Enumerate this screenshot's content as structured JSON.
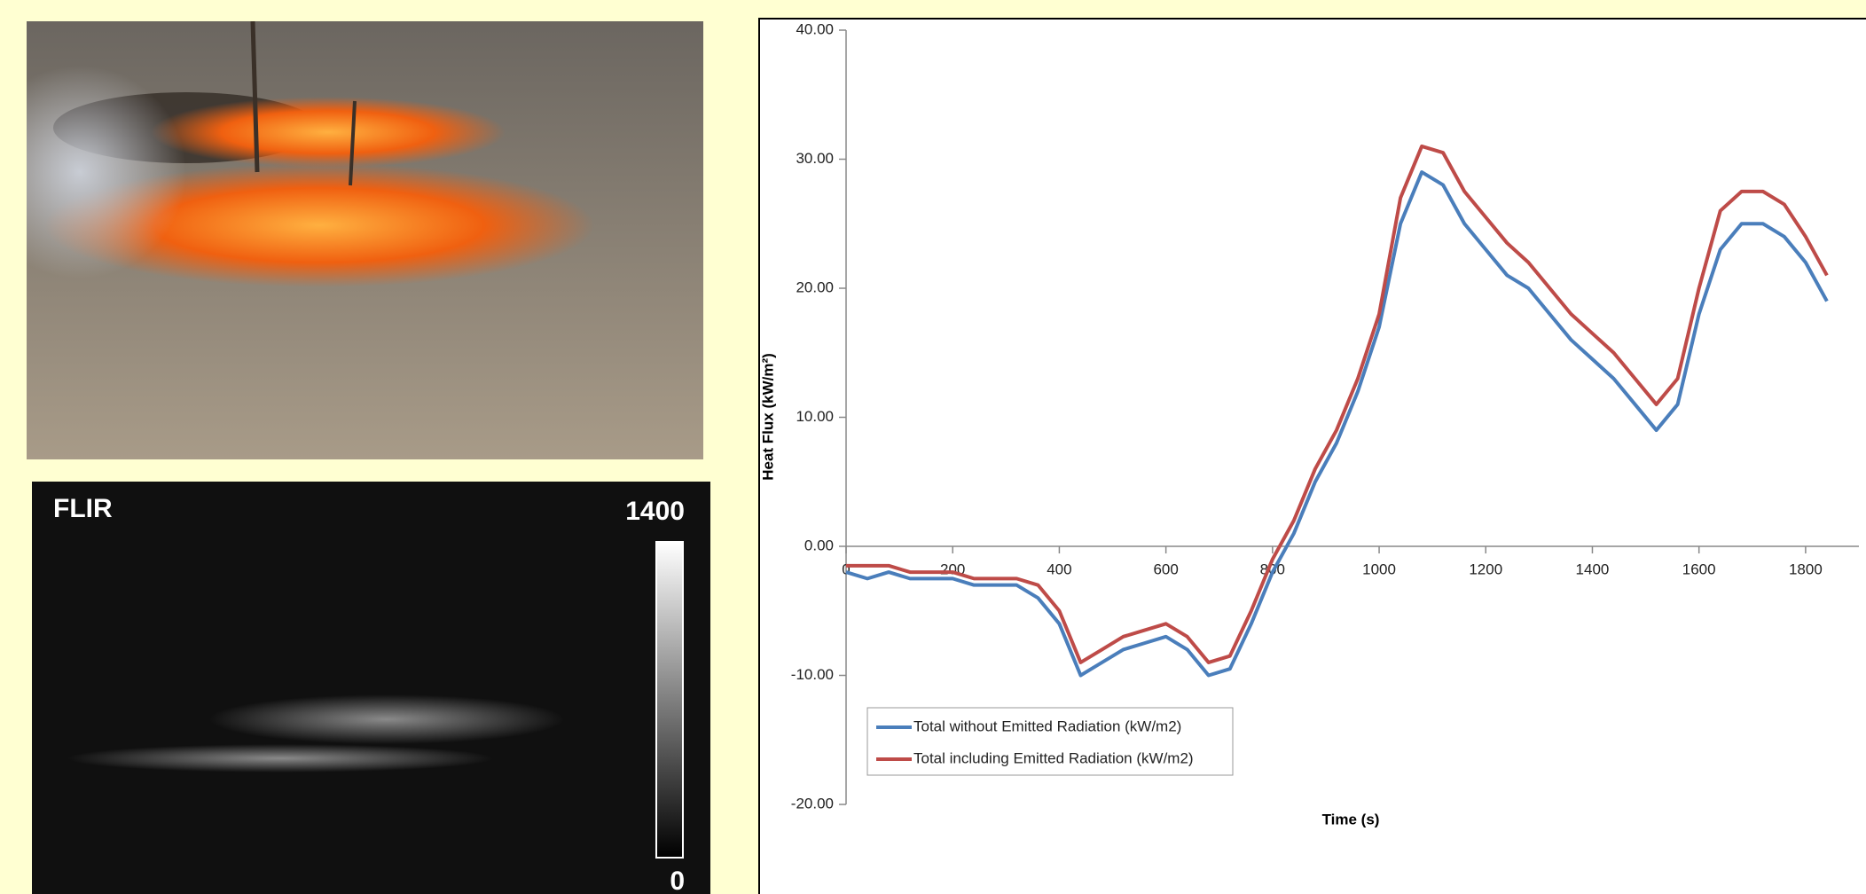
{
  "thermal": {
    "brand": "FLIR",
    "scale_max": "1400",
    "scale_min": "0"
  },
  "chart_data": {
    "type": "line",
    "x_label": "Time (s)",
    "y_label": "Heat Flux (kW/m²)",
    "x": [
      0,
      40,
      80,
      120,
      160,
      200,
      240,
      280,
      320,
      360,
      400,
      440,
      480,
      520,
      560,
      600,
      640,
      680,
      720,
      760,
      800,
      840,
      880,
      920,
      960,
      1000,
      1040,
      1080,
      1120,
      1160,
      1200,
      1240,
      1280,
      1320,
      1360,
      1400,
      1440,
      1480,
      1520,
      1560,
      1600,
      1640,
      1680,
      1720,
      1760,
      1800,
      1840
    ],
    "series": [
      {
        "name": "Total without Emitted Radiation (kW/m2)",
        "color": "#4a7ebb",
        "values": [
          -2,
          -2.5,
          -2,
          -2.5,
          -2.5,
          -2.5,
          -3,
          -3,
          -3,
          -4,
          -6,
          -10,
          -9,
          -8,
          -7.5,
          -7,
          -8,
          -10,
          -9.5,
          -6,
          -2,
          1,
          5,
          8,
          12,
          17,
          25,
          29,
          28,
          25,
          23,
          21,
          20,
          18,
          16,
          14.5,
          13,
          11,
          9,
          11,
          18,
          23,
          25,
          25,
          24,
          22,
          19
        ]
      },
      {
        "name": "Total including Emitted Radiation (kW/m2)",
        "color": "#be4b48",
        "values": [
          -1.5,
          -1.5,
          -1.5,
          -2,
          -2,
          -2,
          -2.5,
          -2.5,
          -2.5,
          -3,
          -5,
          -9,
          -8,
          -7,
          -6.5,
          -6,
          -7,
          -9,
          -8.5,
          -5,
          -1,
          2,
          6,
          9,
          13,
          18,
          27,
          31,
          30.5,
          27.5,
          25.5,
          23.5,
          22,
          20,
          18,
          16.5,
          15,
          13,
          11,
          13,
          20,
          26,
          27.5,
          27.5,
          26.5,
          24,
          21
        ]
      }
    ],
    "xlim": [
      0,
      1900
    ],
    "xticks": [
      0,
      200,
      400,
      600,
      800,
      1000,
      1200,
      1400,
      1600,
      1800
    ],
    "ylim": [
      -20,
      40
    ],
    "yticks": [
      {
        "value": -20,
        "label": "-20.00"
      },
      {
        "value": -10,
        "label": "-10.00"
      },
      {
        "value": 0,
        "label": "0.00"
      },
      {
        "value": 10,
        "label": "10.00"
      },
      {
        "value": 20,
        "label": "20.00"
      },
      {
        "value": 30,
        "label": "30.00"
      },
      {
        "value": 40,
        "label": "40.00"
      }
    ],
    "legend": "lower left"
  }
}
